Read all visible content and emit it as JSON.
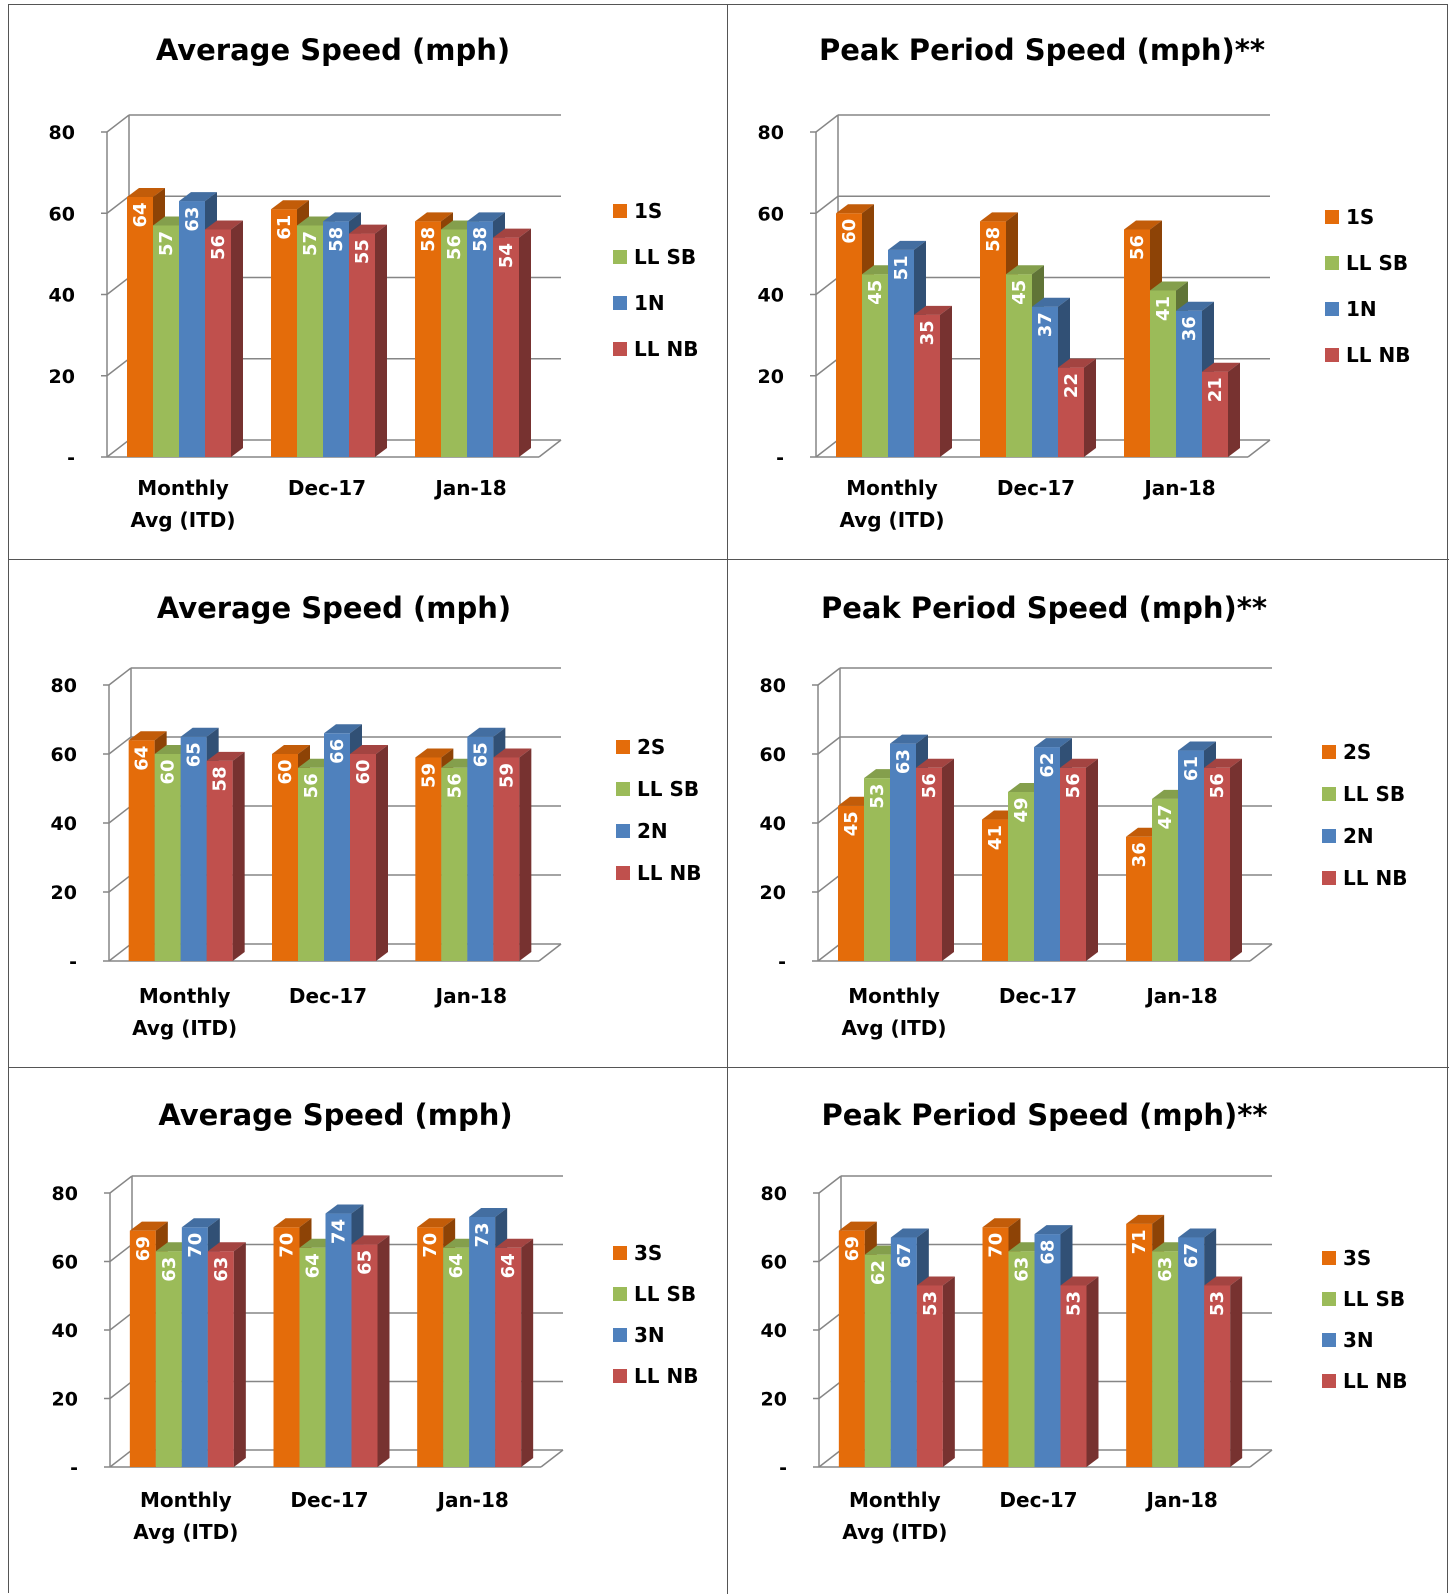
{
  "colors": {
    "orange": "#E46C0A",
    "green": "#9BBB59",
    "blue": "#4F81BD",
    "red": "#C0504D"
  },
  "chart_data": [
    {
      "type": "bar",
      "title": "Average Speed (mph)",
      "categories": [
        "Monthly Avg (ITD)",
        "Dec-17",
        "Jan-18"
      ],
      "yticks": [
        "-",
        "20",
        "40",
        "60",
        "80"
      ],
      "ylim": [
        0,
        80
      ],
      "legend_position": "right",
      "series": [
        {
          "name": "1S",
          "color": "orange",
          "values": [
            64,
            61,
            58
          ]
        },
        {
          "name": "LL SB",
          "color": "green",
          "values": [
            57,
            57,
            56
          ]
        },
        {
          "name": "1N",
          "color": "blue",
          "values": [
            63,
            58,
            58
          ]
        },
        {
          "name": "LL NB",
          "color": "red",
          "values": [
            56,
            55,
            54
          ]
        }
      ]
    },
    {
      "type": "bar",
      "title": "Peak Period Speed (mph)**",
      "categories": [
        "Monthly Avg (ITD)",
        "Dec-17",
        "Jan-18"
      ],
      "yticks": [
        "-",
        "20",
        "40",
        "60",
        "80"
      ],
      "ylim": [
        0,
        80
      ],
      "legend_position": "right",
      "series": [
        {
          "name": "1S",
          "color": "orange",
          "values": [
            60,
            58,
            56
          ]
        },
        {
          "name": "LL SB",
          "color": "green",
          "values": [
            45,
            45,
            41
          ]
        },
        {
          "name": "1N",
          "color": "blue",
          "values": [
            51,
            37,
            36
          ]
        },
        {
          "name": "LL NB",
          "color": "red",
          "values": [
            35,
            22,
            21
          ]
        }
      ]
    },
    {
      "type": "bar",
      "title": "Average Speed (mph)",
      "categories": [
        "Monthly Avg (ITD)",
        "Dec-17",
        "Jan-18"
      ],
      "yticks": [
        "-",
        "20",
        "40",
        "60",
        "80"
      ],
      "ylim": [
        0,
        80
      ],
      "legend_position": "right",
      "series": [
        {
          "name": "2S",
          "color": "orange",
          "values": [
            64,
            60,
            59
          ]
        },
        {
          "name": "LL SB",
          "color": "green",
          "values": [
            60,
            56,
            56
          ]
        },
        {
          "name": "2N",
          "color": "blue",
          "values": [
            65,
            66,
            65
          ]
        },
        {
          "name": "LL NB",
          "color": "red",
          "values": [
            58,
            60,
            59
          ]
        }
      ]
    },
    {
      "type": "bar",
      "title": "Peak Period Speed (mph)**",
      "categories": [
        "Monthly Avg (ITD)",
        "Dec-17",
        "Jan-18"
      ],
      "yticks": [
        "-",
        "20",
        "40",
        "60",
        "80"
      ],
      "ylim": [
        0,
        80
      ],
      "legend_position": "right",
      "series": [
        {
          "name": "2S",
          "color": "orange",
          "values": [
            45,
            41,
            36
          ]
        },
        {
          "name": "LL SB",
          "color": "green",
          "values": [
            53,
            49,
            47
          ]
        },
        {
          "name": "2N",
          "color": "blue",
          "values": [
            63,
            62,
            61
          ]
        },
        {
          "name": "LL NB",
          "color": "red",
          "values": [
            56,
            56,
            56
          ]
        }
      ]
    },
    {
      "type": "bar",
      "title": "Average Speed (mph)",
      "categories": [
        "Monthly Avg (ITD)",
        "Dec-17",
        "Jan-18"
      ],
      "yticks": [
        "-",
        "20",
        "40",
        "60",
        "80"
      ],
      "ylim": [
        0,
        80
      ],
      "legend_position": "right",
      "series": [
        {
          "name": "3S",
          "color": "orange",
          "values": [
            69,
            70,
            70
          ]
        },
        {
          "name": "LL SB",
          "color": "green",
          "values": [
            63,
            64,
            64
          ]
        },
        {
          "name": "3N",
          "color": "blue",
          "values": [
            70,
            74,
            73
          ]
        },
        {
          "name": "LL NB",
          "color": "red",
          "values": [
            63,
            65,
            64
          ]
        }
      ]
    },
    {
      "type": "bar",
      "title": "Peak Period Speed (mph)**",
      "categories": [
        "Monthly Avg (ITD)",
        "Dec-17",
        "Jan-18"
      ],
      "yticks": [
        "-",
        "20",
        "40",
        "60",
        "80"
      ],
      "ylim": [
        0,
        80
      ],
      "legend_position": "right",
      "series": [
        {
          "name": "3S",
          "color": "orange",
          "values": [
            69,
            70,
            71
          ]
        },
        {
          "name": "LL SB",
          "color": "green",
          "values": [
            62,
            63,
            63
          ]
        },
        {
          "name": "3N",
          "color": "blue",
          "values": [
            67,
            68,
            67
          ]
        },
        {
          "name": "LL NB",
          "color": "red",
          "values": [
            53,
            53,
            53
          ]
        }
      ]
    }
  ]
}
